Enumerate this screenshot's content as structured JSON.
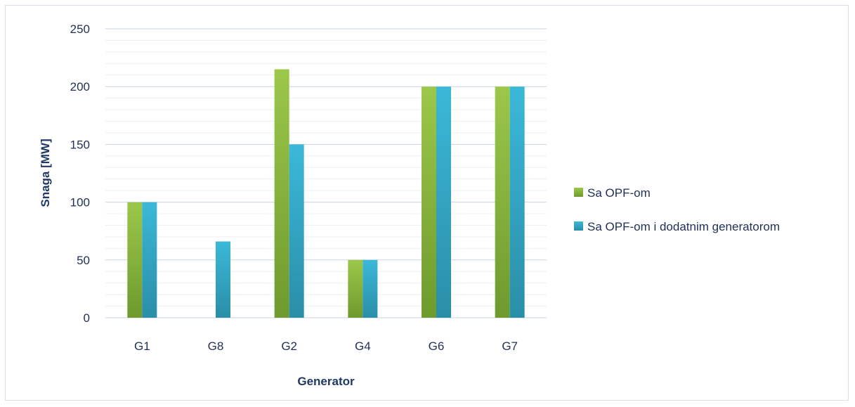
{
  "chart_data": {
    "type": "bar",
    "title": "",
    "xlabel": "Generator",
    "ylabel": "Snaga [MW]",
    "categories": [
      "G1",
      "G8",
      "G2",
      "G4",
      "G6",
      "G7"
    ],
    "series": [
      {
        "name": "Sa OPF-om",
        "values": [
          100,
          0,
          215,
          50,
          200,
          200
        ],
        "color": "#8cb63c"
      },
      {
        "name": "Sa OPF-om i dodatnim generatorom",
        "values": [
          100,
          66,
          150,
          50,
          200,
          200
        ],
        "color": "#31a9c9"
      }
    ],
    "ylim": [
      0,
      250
    ],
    "yticks": [
      "0",
      "50",
      "100",
      "150",
      "200",
      "250"
    ],
    "grid": true,
    "legend": "right"
  }
}
